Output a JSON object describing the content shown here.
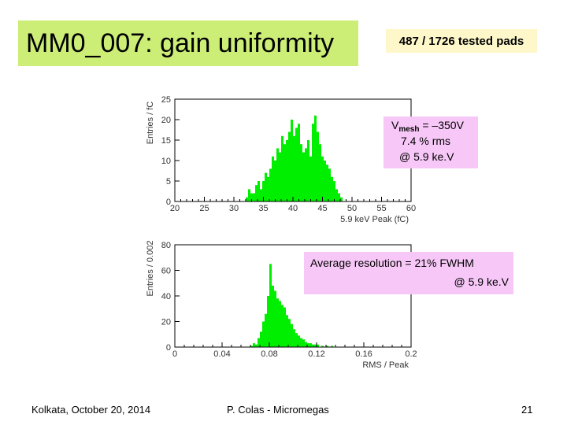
{
  "slide": {
    "title": "MM0_007: gain uniformity",
    "pads_note": "487 / 1726 tested pads",
    "vmesh": {
      "symbol": "V",
      "sub": "mesh",
      "value": " = –350V",
      "rms": "7.4 % rms",
      "at": "@ 5.9 ke.V"
    },
    "resolution": {
      "line1": "Average resolution = 21% FWHM",
      "line2": "@ 5.9 ke.V"
    },
    "footer": {
      "left": "Kolkata, October 20, 2014",
      "center": "P. Colas - Micromegas",
      "page": "21"
    },
    "colors": {
      "title_bg": "#ccee77",
      "pads_bg": "#fdf7c9",
      "label_bg": "#f7c8f7",
      "bars": "#00ee00"
    }
  },
  "chart_data": [
    {
      "type": "bar",
      "title": "",
      "xlabel": "5.9 keV Peak (fC)",
      "ylabel": "Entries / fC",
      "xlim": [
        20,
        60
      ],
      "ylim": [
        0,
        25
      ],
      "xticks": [
        20,
        25,
        30,
        35,
        40,
        45,
        50,
        55,
        60
      ],
      "yticks": [
        0,
        5,
        10,
        15,
        20,
        25
      ],
      "bin_width": 0.4,
      "x": [
        32.2,
        32.6,
        33.0,
        33.4,
        33.8,
        34.2,
        34.6,
        35.0,
        35.4,
        35.8,
        36.2,
        36.6,
        37.0,
        37.4,
        37.8,
        38.2,
        38.6,
        39.0,
        39.4,
        39.8,
        40.2,
        40.6,
        41.0,
        41.4,
        41.8,
        42.2,
        42.6,
        43.0,
        43.4,
        43.8,
        44.2,
        44.6,
        45.0,
        45.4,
        45.8,
        46.2,
        46.6,
        47.0,
        47.4,
        47.8,
        48.2
      ],
      "values": [
        1,
        3,
        2,
        2,
        4,
        5,
        3,
        5,
        7,
        6,
        8,
        11,
        10,
        13,
        12,
        16,
        14,
        15,
        17,
        20,
        16,
        18,
        19,
        14,
        12,
        13,
        15,
        11,
        19,
        21,
        17,
        14,
        11,
        10,
        9,
        8,
        6,
        5,
        3,
        2,
        1
      ]
    },
    {
      "type": "bar",
      "title": "",
      "xlabel": "RMS / Peak",
      "ylabel": "Entries / 0.002",
      "xlim": [
        0,
        0.2
      ],
      "ylim": [
        0,
        80
      ],
      "xticks": [
        0,
        0.04,
        0.08,
        0.12,
        0.16,
        0.2
      ],
      "yticks": [
        0,
        20,
        40,
        60,
        80
      ],
      "bin_width": 0.002,
      "x": [
        0.065,
        0.067,
        0.069,
        0.071,
        0.073,
        0.075,
        0.077,
        0.079,
        0.081,
        0.083,
        0.085,
        0.087,
        0.089,
        0.091,
        0.093,
        0.095,
        0.097,
        0.099,
        0.101,
        0.103,
        0.105,
        0.107,
        0.109,
        0.111,
        0.113,
        0.115,
        0.117,
        0.119,
        0.121,
        0.125,
        0.129,
        0.133
      ],
      "values": [
        1,
        3,
        2,
        7,
        12,
        20,
        26,
        40,
        65,
        48,
        44,
        38,
        36,
        33,
        31,
        25,
        22,
        18,
        14,
        11,
        9,
        7,
        6,
        4,
        3,
        3,
        2,
        2,
        2,
        1,
        1,
        1
      ]
    }
  ]
}
